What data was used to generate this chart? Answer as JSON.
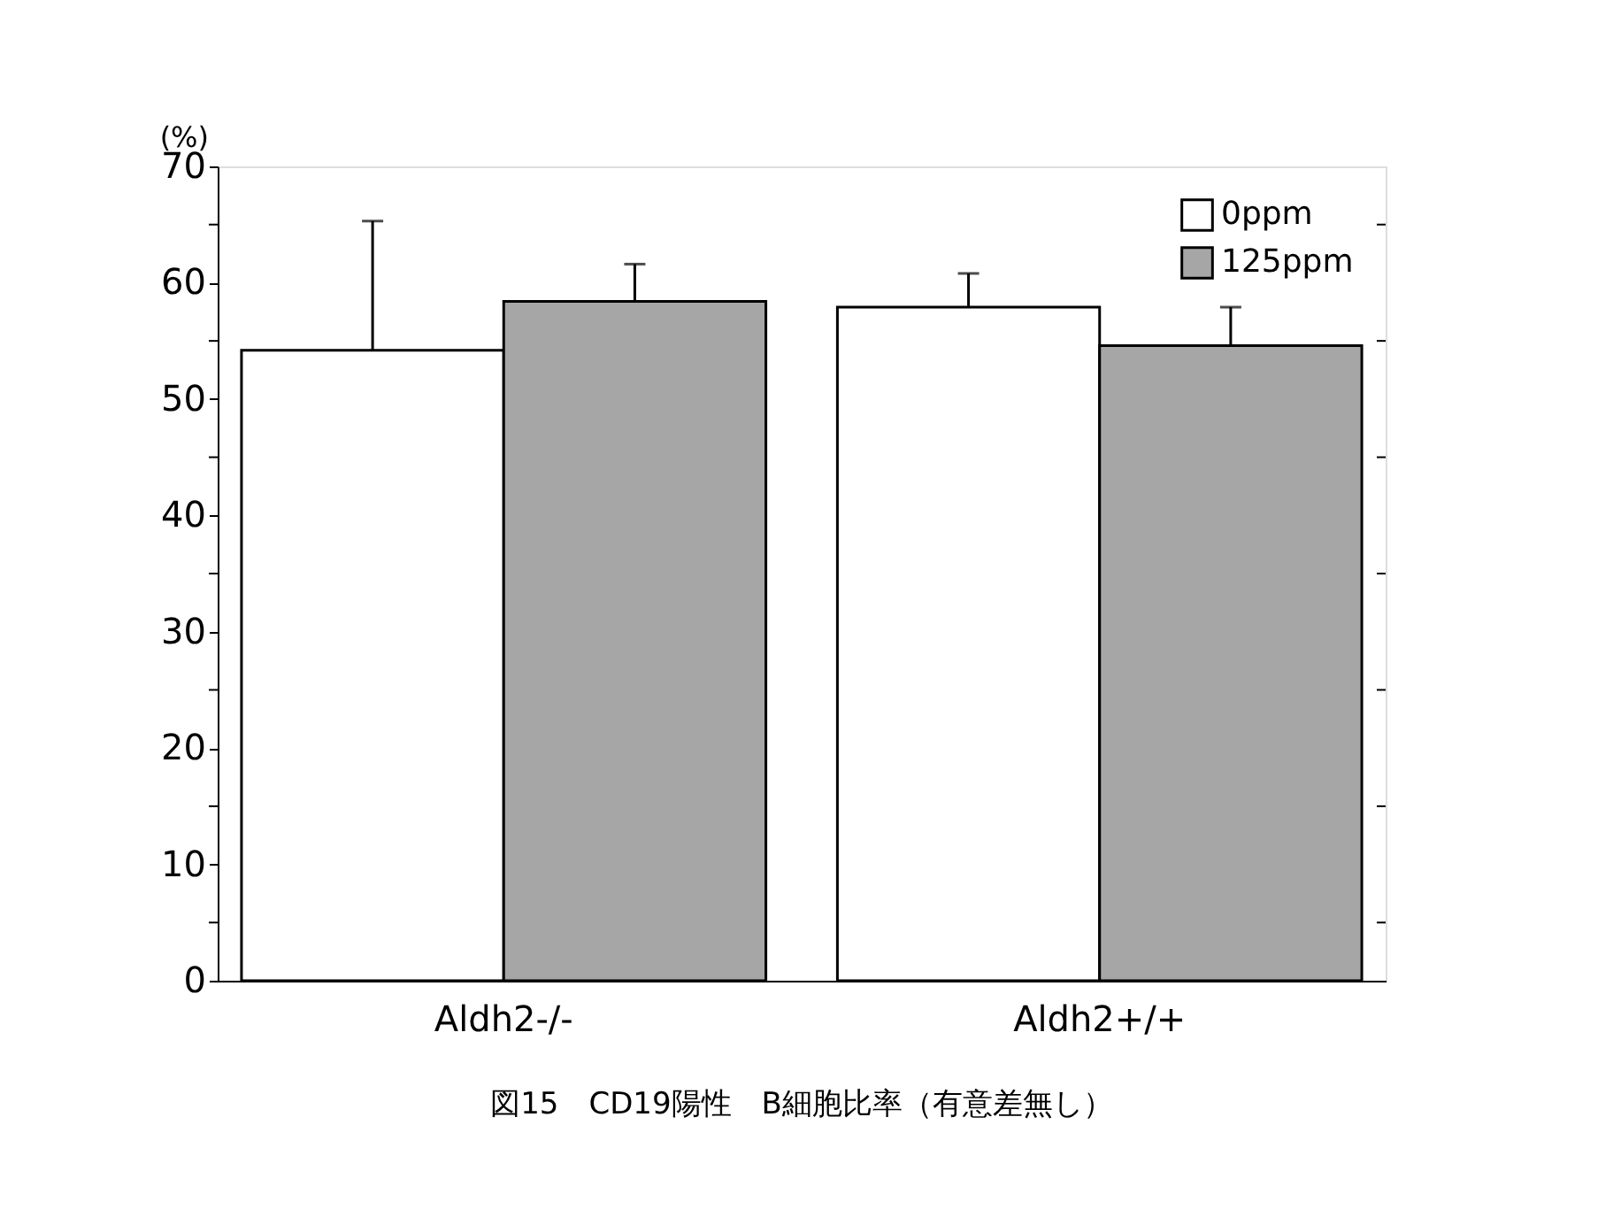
{
  "chart_data": {
    "type": "bar",
    "ylabel": "(%)",
    "categories": [
      "Aldh2-/-",
      "Aldh2+/+"
    ],
    "series": [
      {
        "name": "0ppm",
        "color": "#ffffff",
        "values": [
          54.2,
          57.9
        ],
        "errors": [
          [
            54.2,
            65.3
          ],
          [
            57.9,
            60.8
          ]
        ]
      },
      {
        "name": "125ppm",
        "color": "#a6a6a6",
        "values": [
          58.4,
          54.6
        ],
        "errors": [
          [
            58.4,
            61.6
          ],
          [
            54.6,
            57.9
          ]
        ]
      }
    ],
    "ylim": [
      0,
      70
    ],
    "yticks": [
      0,
      {
        "value": 5,
        "label": null
      },
      10,
      {
        "value": 15,
        "label": null
      },
      20,
      {
        "value": 25,
        "label": null
      },
      30,
      {
        "value": 35,
        "label": null
      },
      40,
      {
        "value": 45,
        "label": null
      },
      50,
      {
        "value": 55,
        "label": null
      },
      60,
      {
        "value": 65,
        "label": null
      },
      70
    ],
    "legend": "top right",
    "grid": false,
    "annotations": [
      "図15　CD19陽性　B細胞比率（有意差無し）"
    ]
  }
}
